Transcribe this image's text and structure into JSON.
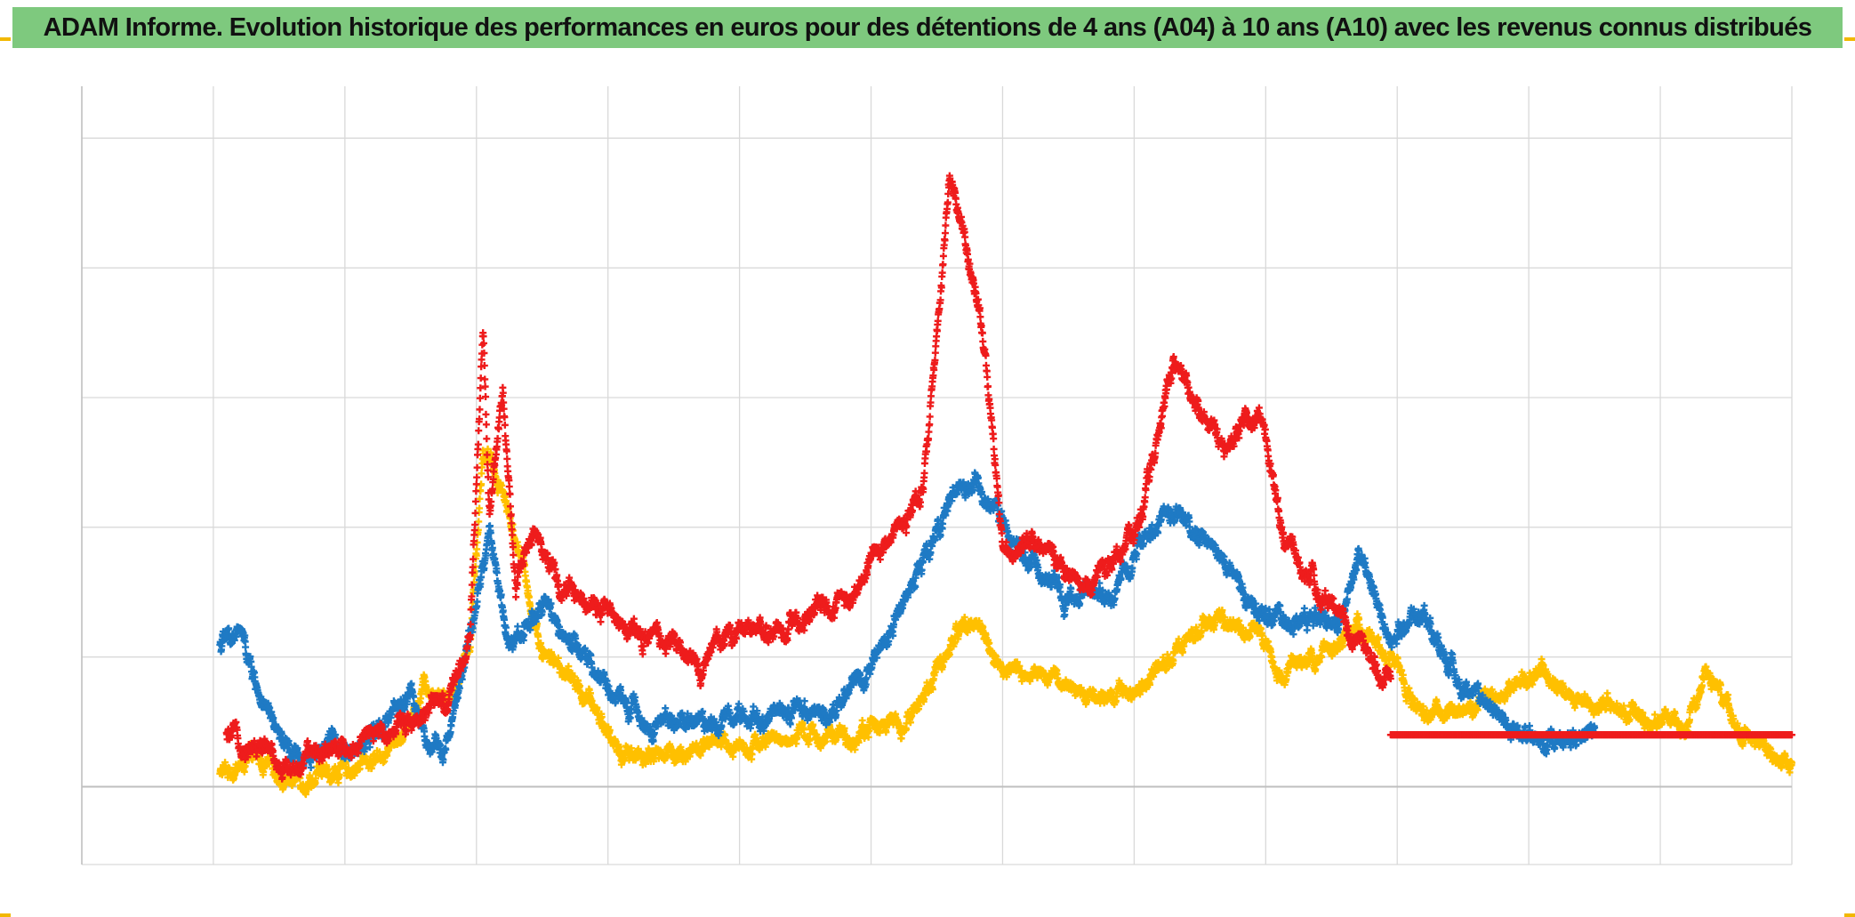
{
  "header": {
    "title": "ADAM Informe. Evolution historique des performances en euros pour des détentions de 4 ans (A04) à 10 ans (A10) avec les revenus connus distribués"
  },
  "colors": {
    "title_bg": "#7ec97e",
    "grid": "#d9d9d9",
    "axis": "#bfbfbf",
    "frame_corner": "#f2b800"
  },
  "chart_data": {
    "type": "scatter",
    "marker": "plus",
    "title": "ADAM Informe. Evolution historique des performances en euros pour des détentions de 4 ans (A04) à 10 ans (A10) avec les revenus connus distribués",
    "xlabel": "",
    "ylabel": "",
    "xlim": [
      0,
      13
    ],
    "ylim": [
      -0.6,
      5.4
    ],
    "zero_line": 0,
    "grid": true,
    "legend": "none",
    "series": [
      {
        "name": "red",
        "color": "#ee1c1c",
        "anchors": [
          [
            1.1,
            0.38
          ],
          [
            1.4,
            0.28
          ],
          [
            1.6,
            0.12
          ],
          [
            1.85,
            0.32
          ],
          [
            2.1,
            0.32
          ],
          [
            2.35,
            0.46
          ],
          [
            2.6,
            0.58
          ],
          [
            2.8,
            0.65
          ],
          [
            2.95,
            1.1
          ],
          [
            3.05,
            3.5
          ],
          [
            3.1,
            2.1
          ],
          [
            3.2,
            3.1
          ],
          [
            3.3,
            1.5
          ],
          [
            3.45,
            2.0
          ],
          [
            3.65,
            1.5
          ],
          [
            3.9,
            1.45
          ],
          [
            4.1,
            1.25
          ],
          [
            4.3,
            1.15
          ],
          [
            4.5,
            1.1
          ],
          [
            4.7,
            0.9
          ],
          [
            4.9,
            1.2
          ],
          [
            5.1,
            1.25
          ],
          [
            5.3,
            1.15
          ],
          [
            5.5,
            1.3
          ],
          [
            5.7,
            1.4
          ],
          [
            5.85,
            1.45
          ],
          [
            6.0,
            1.8
          ],
          [
            6.15,
            1.9
          ],
          [
            6.4,
            2.3
          ],
          [
            6.6,
            4.7
          ],
          [
            6.85,
            3.5
          ],
          [
            7.0,
            1.85
          ],
          [
            7.3,
            1.9
          ],
          [
            7.6,
            1.5
          ],
          [
            8.0,
            1.9
          ],
          [
            8.3,
            3.3
          ],
          [
            8.5,
            2.9
          ],
          [
            8.7,
            2.6
          ],
          [
            8.95,
            2.9
          ],
          [
            9.15,
            1.85
          ],
          [
            9.4,
            1.5
          ],
          [
            9.7,
            1.1
          ],
          [
            9.95,
            0.75
          ]
        ],
        "flat": {
          "x_start": 9.95,
          "x_end": 13.0,
          "y": 0.4
        },
        "spread": 0.08
      },
      {
        "name": "blue",
        "color": "#1f7ac4",
        "anchors": [
          [
            1.05,
            1.1
          ],
          [
            1.2,
            1.2
          ],
          [
            1.4,
            0.55
          ],
          [
            1.6,
            0.2
          ],
          [
            1.9,
            0.35
          ],
          [
            2.1,
            0.3
          ],
          [
            2.35,
            0.5
          ],
          [
            2.5,
            0.75
          ],
          [
            2.65,
            0.2
          ],
          [
            2.8,
            0.4
          ],
          [
            3.0,
            1.4
          ],
          [
            3.1,
            1.95
          ],
          [
            3.25,
            1.1
          ],
          [
            3.5,
            1.4
          ],
          [
            3.75,
            1.05
          ],
          [
            4.1,
            0.65
          ],
          [
            4.3,
            0.5
          ],
          [
            4.6,
            0.5
          ],
          [
            5.0,
            0.55
          ],
          [
            5.4,
            0.6
          ],
          [
            5.7,
            0.6
          ],
          [
            5.95,
            0.9
          ],
          [
            6.3,
            1.5
          ],
          [
            6.55,
            2.1
          ],
          [
            6.8,
            2.35
          ],
          [
            7.1,
            1.85
          ],
          [
            7.5,
            1.45
          ],
          [
            7.9,
            1.5
          ],
          [
            8.1,
            2.0
          ],
          [
            8.4,
            2.05
          ],
          [
            8.7,
            1.7
          ],
          [
            8.95,
            1.3
          ],
          [
            9.3,
            1.3
          ],
          [
            9.55,
            1.2
          ],
          [
            9.7,
            1.85
          ],
          [
            9.95,
            1.1
          ],
          [
            10.2,
            1.3
          ],
          [
            10.5,
            0.75
          ],
          [
            10.8,
            0.5
          ],
          [
            11.1,
            0.35
          ],
          [
            11.3,
            0.35
          ],
          [
            11.5,
            0.4
          ]
        ],
        "spread": 0.08
      },
      {
        "name": "yellow",
        "color": "#ffc000",
        "anchors": [
          [
            1.05,
            0.1
          ],
          [
            1.3,
            0.2
          ],
          [
            1.6,
            0.05
          ],
          [
            1.9,
            0.1
          ],
          [
            2.2,
            0.2
          ],
          [
            2.45,
            0.4
          ],
          [
            2.6,
            0.8
          ],
          [
            2.8,
            0.7
          ],
          [
            2.95,
            1.1
          ],
          [
            3.05,
            2.6
          ],
          [
            3.2,
            2.3
          ],
          [
            3.35,
            1.7
          ],
          [
            3.5,
            1.05
          ],
          [
            3.7,
            0.85
          ],
          [
            3.9,
            0.6
          ],
          [
            4.1,
            0.25
          ],
          [
            4.4,
            0.25
          ],
          [
            4.8,
            0.3
          ],
          [
            5.2,
            0.35
          ],
          [
            5.6,
            0.4
          ],
          [
            5.85,
            0.35
          ],
          [
            6.05,
            0.5
          ],
          [
            6.25,
            0.45
          ],
          [
            6.5,
            0.9
          ],
          [
            6.75,
            1.35
          ],
          [
            7.0,
            0.9
          ],
          [
            7.3,
            0.85
          ],
          [
            7.7,
            0.7
          ],
          [
            8.0,
            0.75
          ],
          [
            8.2,
            0.95
          ],
          [
            8.5,
            1.25
          ],
          [
            8.7,
            1.25
          ],
          [
            8.95,
            1.2
          ],
          [
            9.1,
            0.9
          ],
          [
            9.4,
            1.05
          ],
          [
            9.7,
            1.25
          ],
          [
            9.95,
            1.0
          ],
          [
            10.2,
            0.5
          ],
          [
            10.5,
            0.6
          ],
          [
            10.8,
            0.7
          ],
          [
            11.1,
            0.95
          ],
          [
            11.35,
            0.6
          ],
          [
            11.6,
            0.65
          ],
          [
            11.9,
            0.55
          ],
          [
            12.2,
            0.5
          ],
          [
            12.35,
            0.9
          ],
          [
            12.6,
            0.4
          ],
          [
            12.9,
            0.2
          ],
          [
            13.0,
            0.15
          ]
        ],
        "spread": 0.07
      }
    ]
  }
}
